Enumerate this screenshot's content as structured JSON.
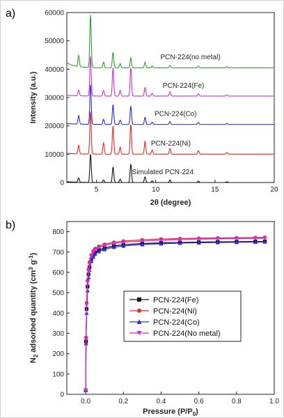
{
  "chart_data": [
    {
      "type": "line",
      "panel": "a)",
      "xlabel": "2θ (degree)",
      "ylabel": "Intensity (a.u.)",
      "xlim": [
        2.5,
        20
      ],
      "ylim": [
        0,
        60000
      ],
      "xticks": [
        5,
        10,
        15,
        20
      ],
      "yticks": [
        0,
        10000,
        20000,
        30000,
        40000,
        50000,
        60000
      ],
      "peak_positions": [
        3.5,
        4.5,
        5.6,
        6.4,
        7.0,
        7.9,
        9.1,
        9.7,
        11.2,
        13.6,
        16.0
      ],
      "series": [
        {
          "name": "Simulated PCN-224",
          "color": "#111111",
          "baseline": 0,
          "peak_heights": [
            1500,
            10000,
            900,
            5500,
            1200,
            6500,
            2000,
            600,
            900,
            500,
            300
          ]
        },
        {
          "name": "PCN-224(Ni)",
          "color": "#e8261f",
          "baseline": 10000,
          "peak_heights": [
            3000,
            15000,
            4000,
            10000,
            2500,
            10500,
            4500,
            1500,
            2000,
            1200,
            600
          ]
        },
        {
          "name": "PCN-224(Co)",
          "color": "#2a2ad9",
          "baseline": 20500,
          "peak_heights": [
            3000,
            14000,
            1800,
            7000,
            1500,
            6500,
            2500,
            800,
            1000,
            700,
            400
          ]
        },
        {
          "name": "PCN-224(Fe)",
          "color": "#d62bd6",
          "baseline": 30500,
          "peak_heights": [
            2000,
            14000,
            2000,
            10000,
            2000,
            10000,
            3000,
            1000,
            1500,
            800,
            500
          ]
        },
        {
          "name": "PCN-224(no metal)",
          "color": "#2aa32a",
          "baseline": 40500,
          "peak_heights": [
            4000,
            18500,
            2000,
            5500,
            1500,
            3500,
            2000,
            700,
            800,
            600,
            400
          ]
        }
      ]
    },
    {
      "type": "line",
      "panel": "b)",
      "xlabel": "Pressure (P/P",
      "xlabel_sub": "0",
      "xlabel_end": ")",
      "ylabel": "N",
      "ylabel_sub": "2",
      "ylabel_rest": " adsorbed quantity (cm",
      "ylabel_sup": "3",
      "ylabel_g": " g",
      "ylabel_sup2": "-1",
      "ylabel_end": ")",
      "xlim": [
        -0.1,
        1.0
      ],
      "ylim": [
        0,
        850
      ],
      "xticks": [
        0.0,
        0.2,
        0.4,
        0.6,
        0.8,
        1.0
      ],
      "yticks": [
        0,
        100,
        200,
        300,
        400,
        500,
        600,
        700,
        800
      ],
      "legend_position": "lower-right",
      "x": [
        0.0,
        0.002,
        0.005,
        0.01,
        0.015,
        0.02,
        0.03,
        0.04,
        0.05,
        0.07,
        0.1,
        0.15,
        0.2,
        0.3,
        0.4,
        0.5,
        0.6,
        0.7,
        0.8,
        0.9,
        0.95
      ],
      "series": [
        {
          "name": "PCN-224(Fe)",
          "color": "#111111",
          "marker": "square",
          "values": [
            20,
            260,
            420,
            530,
            590,
            625,
            665,
            685,
            698,
            710,
            720,
            730,
            736,
            742,
            745,
            747,
            749,
            750,
            751,
            752,
            752
          ]
        },
        {
          "name": "PCN-224(Ni)",
          "color": "#e8261f",
          "marker": "circle",
          "values": [
            20,
            280,
            450,
            560,
            615,
            650,
            685,
            705,
            717,
            728,
            738,
            748,
            754,
            760,
            764,
            766,
            768,
            769,
            770,
            771,
            772
          ]
        },
        {
          "name": "PCN-224(Co)",
          "color": "#2a2ad9",
          "marker": "triangle-up",
          "values": [
            20,
            250,
            400,
            510,
            575,
            612,
            655,
            676,
            690,
            703,
            713,
            724,
            730,
            737,
            741,
            744,
            746,
            747,
            748,
            749,
            750
          ]
        },
        {
          "name": "PCN-224(No metal)",
          "color": "#d62bd6",
          "marker": "triangle-down",
          "values": [
            20,
            270,
            440,
            550,
            605,
            640,
            678,
            698,
            710,
            722,
            732,
            742,
            748,
            754,
            758,
            761,
            763,
            765,
            766,
            767,
            768
          ]
        }
      ]
    }
  ]
}
